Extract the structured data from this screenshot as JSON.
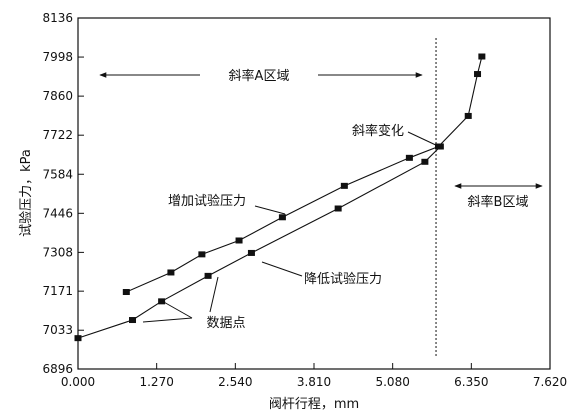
{
  "chart_data": {
    "type": "line",
    "xlabel": "阀杆行程，mm",
    "ylabel": "试验压力，kPa",
    "xlim": [
      0,
      7.62
    ],
    "ylim": [
      6896,
      8136
    ],
    "x_ticks": [
      "0.000",
      "1.270",
      "2.540",
      "3.810",
      "5.080",
      "6.350",
      "7.620"
    ],
    "y_ticks": [
      "6896",
      "7033",
      "7171",
      "7308",
      "7446",
      "7584",
      "7722",
      "7860",
      "7998",
      "8136"
    ],
    "grid": false,
    "series": [
      {
        "name": "增加试验压力",
        "points": [
          [
            0.78,
            7168
          ],
          [
            1.5,
            7237
          ],
          [
            2.0,
            7301
          ],
          [
            2.6,
            7350
          ],
          [
            3.3,
            7432
          ],
          [
            4.3,
            7543
          ],
          [
            5.35,
            7642
          ],
          [
            5.82,
            7682
          ],
          [
            6.3,
            7790
          ],
          [
            6.45,
            7938
          ],
          [
            6.52,
            8000
          ]
        ]
      },
      {
        "name": "降低试验压力",
        "points": [
          [
            0.0,
            7005
          ],
          [
            0.88,
            7069
          ],
          [
            1.35,
            7135
          ],
          [
            2.1,
            7225
          ],
          [
            2.8,
            7306
          ],
          [
            4.2,
            7463
          ],
          [
            5.6,
            7628
          ],
          [
            5.85,
            7682
          ]
        ]
      }
    ],
    "annotations": {
      "series_up_label": "增加试验压力",
      "series_down_label": "降低试验压力",
      "data_points_label": "数据点",
      "slope_change_label": "斜率变化",
      "region_a_label": "斜率A区域",
      "region_b_label": "斜率B区域",
      "slope_change_x": 5.78
    }
  }
}
